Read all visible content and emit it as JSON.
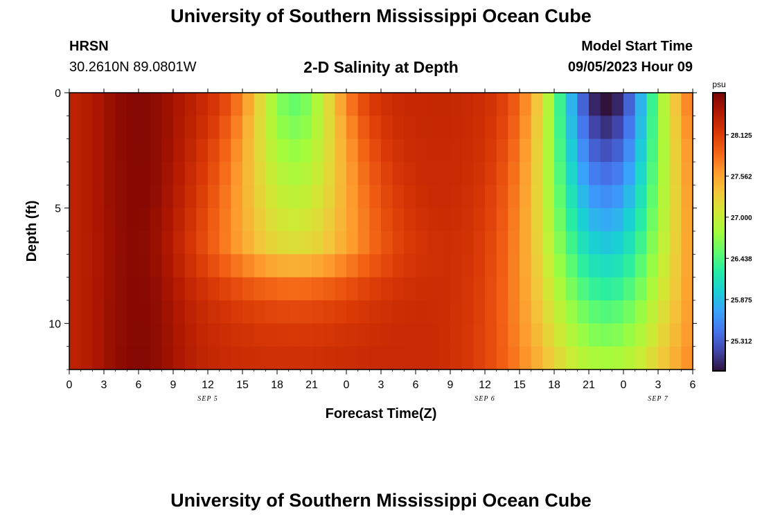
{
  "header": {
    "title": "University of Southern Mississippi Ocean Cube",
    "station": "HRSN",
    "coordinates": "30.2610N  89.0801W",
    "subtitle": "2-D Salinity at Depth",
    "start_label": "Model Start Time",
    "start_value": "09/05/2023 Hour 09"
  },
  "footer": {
    "title": "University of Southern Mississippi Ocean Cube"
  },
  "chart_data": {
    "type": "heatmap",
    "title": "2-D Salinity at Depth",
    "xlabel": "Forecast Time(Z)",
    "ylabel": "Depth (ft)",
    "x_range_hours": [
      0,
      54
    ],
    "y_range": [
      0,
      12
    ],
    "y_inverted": true,
    "x_tick_labels": [
      "0",
      "3",
      "6",
      "9",
      "12",
      "15",
      "18",
      "21",
      "0",
      "3",
      "6",
      "9",
      "12",
      "15",
      "18",
      "21",
      "0",
      "3",
      "6"
    ],
    "x_ticks_hours": [
      0,
      3,
      6,
      9,
      12,
      15,
      18,
      21,
      24,
      27,
      30,
      33,
      36,
      39,
      42,
      45,
      48,
      51,
      54
    ],
    "date_labels": [
      {
        "text": "SEP 5",
        "hour": 12
      },
      {
        "text": "SEP 6",
        "hour": 36
      },
      {
        "text": "SEP 7",
        "hour": 51
      }
    ],
    "y_ticks": [
      0,
      5,
      10
    ],
    "y_tick_labels": [
      "0",
      "5",
      "10"
    ],
    "colorbar": {
      "unit": "psu",
      "min": 24.9,
      "max": 28.7,
      "tick_values": [
        28.125,
        27.562,
        27.0,
        26.438,
        25.875,
        25.312
      ],
      "tick_labels": [
        "28.125",
        "27.562",
        "27.000",
        "26.438",
        "25.875",
        "25.312"
      ],
      "colormap": [
        "#30123b",
        "#4145ab",
        "#4675ed",
        "#39a2fc",
        "#1bcfd4",
        "#24eca6",
        "#61fc6c",
        "#a4fc3b",
        "#d1e834",
        "#f3c63a",
        "#fe9b2d",
        "#f36315",
        "#d93806",
        "#b11901",
        "#7a0402"
      ]
    },
    "grid": false,
    "legend_position": "right",
    "salinity_model": {
      "base": 28.3,
      "cells_x": 54,
      "cells_y": 12,
      "events": [
        {
          "center_hour": 19.5,
          "half_width_hours": 4.2,
          "surface_drop": 1.8,
          "bottom_drop": 1.1,
          "floor_depth": 7,
          "bottom_spread": 1.7
        },
        {
          "center_hour": 46.5,
          "half_width_hours": 5.2,
          "surface_drop": 3.5,
          "bottom_drop": 1.4,
          "floor_depth": 12,
          "bottom_spread": 1.5
        }
      ],
      "high_band_center_hour": 6,
      "high_band_boost": 0.35
    }
  }
}
